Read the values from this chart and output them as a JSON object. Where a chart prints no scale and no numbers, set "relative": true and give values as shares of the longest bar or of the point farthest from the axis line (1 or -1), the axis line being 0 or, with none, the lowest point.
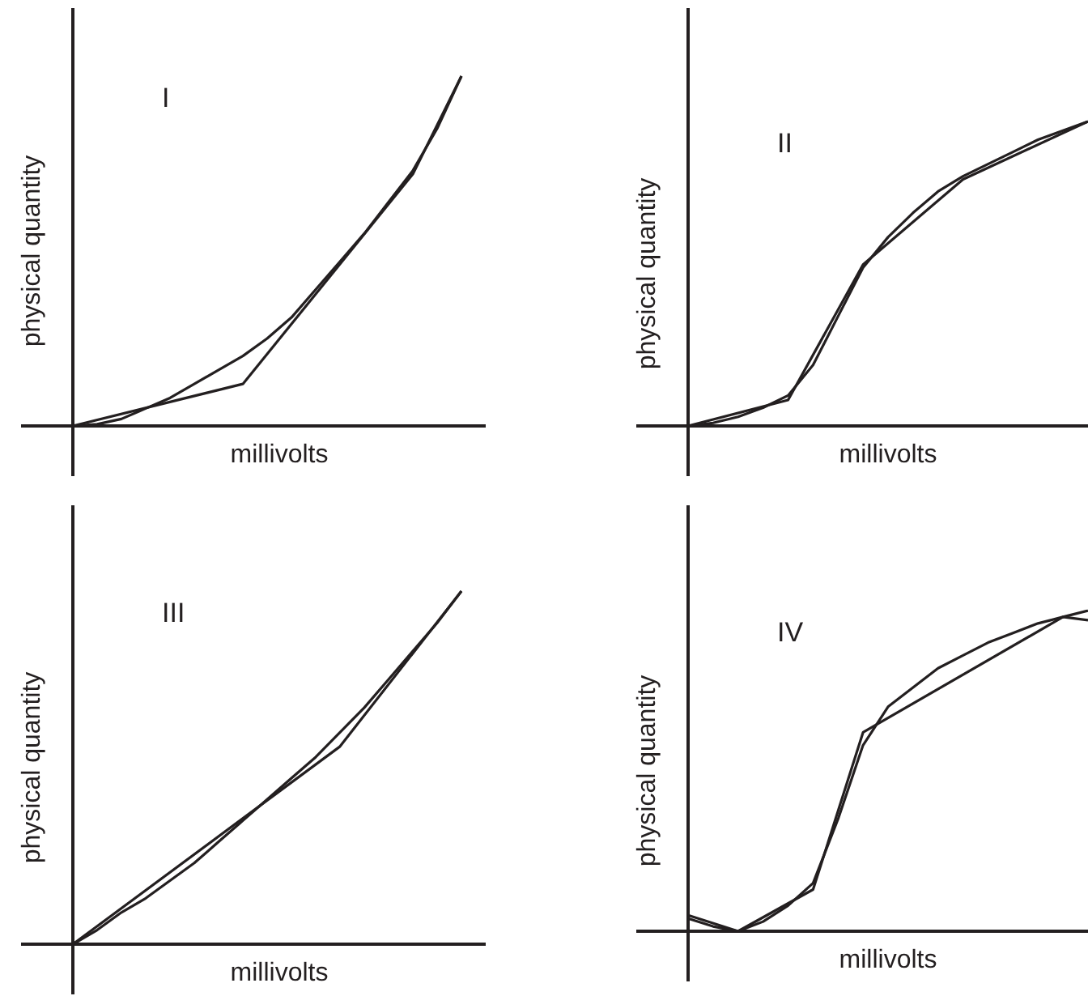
{
  "chart_data": [
    {
      "type": "line",
      "relative": true,
      "title": "I",
      "xlabel": "millivolts",
      "ylabel": "physical quantity",
      "categories": [
        null,
        null,
        null,
        null,
        null,
        null,
        null,
        null,
        null,
        null,
        null,
        null,
        null,
        null,
        null,
        null,
        null,
        null
      ],
      "series": [
        {
          "color": "#231f20",
          "values": [
            0,
            0.005,
            0.02,
            0.05,
            0.08,
            0.12,
            0.16,
            0.2,
            0.25,
            0.31,
            0.39,
            0.47,
            0.55,
            0.64,
            0.73,
            0.85,
            1,
            null
          ]
        },
        {
          "color": "#231f20",
          "values": [
            0,
            null,
            null,
            null,
            null,
            null,
            null,
            0.12,
            null,
            null,
            null,
            null,
            null,
            null,
            0.72,
            null,
            1,
            null
          ]
        }
      ]
    },
    {
      "type": "line",
      "relative": true,
      "title": "II",
      "xlabel": "millivolts",
      "ylabel": "physical quantity",
      "categories": [
        null,
        null,
        null,
        null,
        null,
        null,
        null,
        null,
        null,
        null,
        null,
        null,
        null,
        null,
        null,
        null,
        null
      ],
      "series": [
        {
          "color": "#231f20",
          "values": [
            0,
            0.01,
            0.03,
            0.06,
            0.1,
            0.2,
            0.36,
            0.52,
            0.62,
            0.7,
            0.77,
            0.82,
            0.86,
            0.9,
            0.94,
            0.97,
            1
          ]
        },
        {
          "color": "#231f20",
          "values": [
            0,
            null,
            null,
            null,
            0.085,
            null,
            null,
            0.53,
            null,
            null,
            null,
            0.81,
            null,
            null,
            null,
            null,
            1
          ]
        }
      ]
    },
    {
      "type": "line",
      "relative": true,
      "title": "III",
      "xlabel": "millivolts",
      "ylabel": "physical quantity",
      "categories": [
        null,
        null,
        null,
        null,
        null,
        null,
        null,
        null,
        null,
        null,
        null,
        null,
        null,
        null,
        null,
        null,
        null,
        null
      ],
      "series": [
        {
          "color": "#231f20",
          "values": [
            0,
            0.04,
            0.09,
            0.13,
            0.18,
            0.23,
            0.29,
            0.35,
            0.41,
            0.47,
            0.53,
            0.6,
            0.67,
            0.75,
            0.83,
            0.91,
            1,
            null
          ]
        },
        {
          "color": "#231f20",
          "values": [
            0,
            null,
            null,
            null,
            null,
            null,
            null,
            null,
            null,
            null,
            null,
            0.56,
            null,
            null,
            null,
            null,
            1,
            null
          ]
        }
      ]
    },
    {
      "type": "line",
      "relative": true,
      "title": "IV",
      "xlabel": "millivolts",
      "ylabel": "physical quantity",
      "categories": [
        null,
        null,
        null,
        null,
        null,
        null,
        null,
        null,
        null,
        null,
        null,
        null,
        null,
        null,
        null,
        null,
        null
      ],
      "series": [
        {
          "color": "#231f20",
          "values": [
            0.04,
            0.015,
            0,
            0.03,
            0.08,
            0.15,
            0.35,
            0.58,
            0.7,
            0.76,
            0.82,
            0.86,
            0.9,
            0.93,
            0.96,
            0.98,
            1
          ]
        },
        {
          "color": "#231f20",
          "values": [
            0.05,
            null,
            0,
            null,
            null,
            0.13,
            null,
            0.62,
            null,
            null,
            null,
            null,
            null,
            null,
            null,
            0.98,
            0.97
          ]
        }
      ]
    }
  ]
}
